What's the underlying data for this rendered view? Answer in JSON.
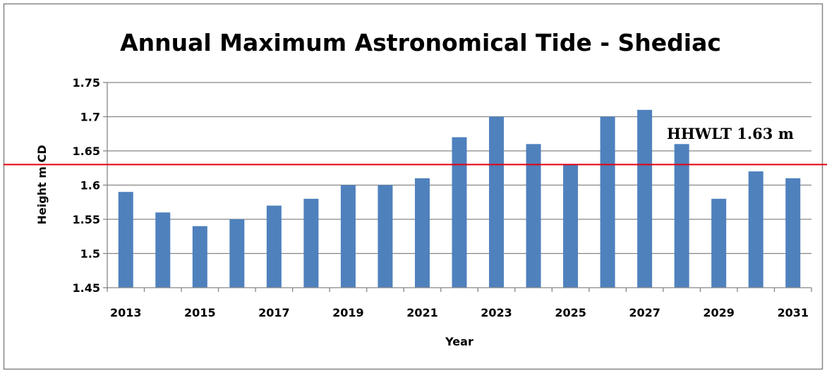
{
  "chart_data": {
    "type": "bar",
    "title": "Annual Maximum Astronomical Tide - Shediac",
    "xlabel": "Year",
    "ylabel": "Height m CD",
    "categories": [
      "2013",
      "2014",
      "2015",
      "2016",
      "2017",
      "2018",
      "2019",
      "2020",
      "2021",
      "2022",
      "2023",
      "2024",
      "2025",
      "2026",
      "2027",
      "2028",
      "2029",
      "2030",
      "2031"
    ],
    "x_tick_labels": [
      "2013",
      "2015",
      "2017",
      "2019",
      "2021",
      "2023",
      "2025",
      "2027",
      "2029",
      "2031"
    ],
    "values": [
      1.59,
      1.56,
      1.54,
      1.55,
      1.57,
      1.58,
      1.6,
      1.6,
      1.61,
      1.67,
      1.7,
      1.66,
      1.63,
      1.7,
      1.71,
      1.66,
      1.58,
      1.62,
      1.61
    ],
    "ylim": [
      1.45,
      1.75
    ],
    "y_tick_labels": [
      "1.45",
      "1.5",
      "1.55",
      "1.6",
      "1.65",
      "1.7",
      "1.75"
    ],
    "y_tick_values": [
      1.45,
      1.5,
      1.55,
      1.6,
      1.65,
      1.7,
      1.75
    ],
    "grid": "horizontal",
    "legend": "none",
    "bar_color": "#4F81BD",
    "reference_line": {
      "value": 1.63,
      "label": "HHWLT 1.63 m",
      "color": "#E3000F"
    }
  }
}
